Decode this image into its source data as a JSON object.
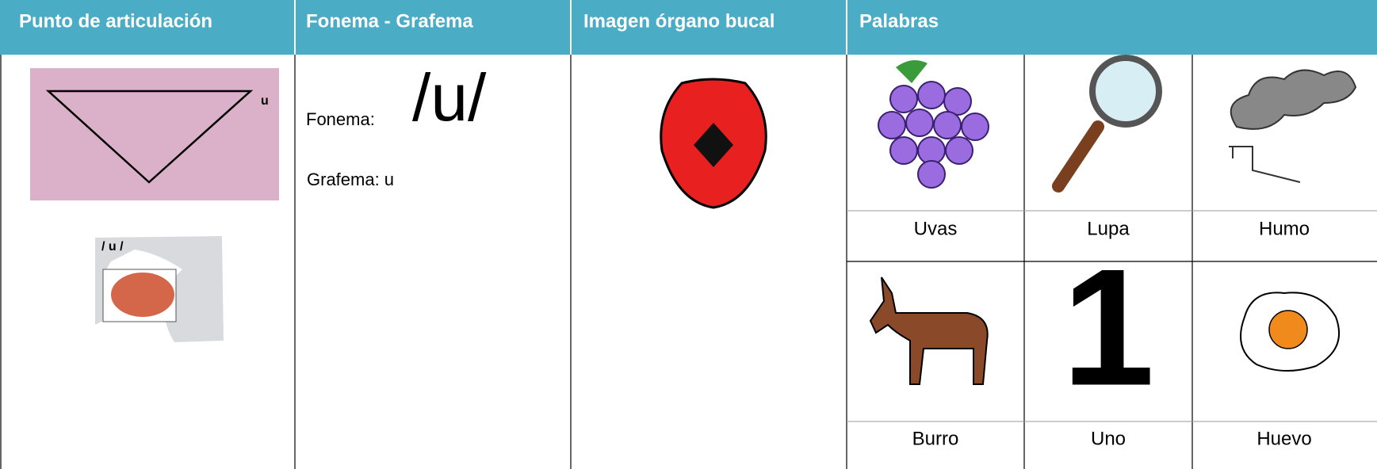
{
  "table": {
    "header": [
      "Punto de articulación",
      "Fonema - Grafema",
      "Imagen órgano bucal",
      "Palabras"
    ],
    "articulation": {
      "diagram_label": "u",
      "mouth_label": "/ u /"
    },
    "phoneme": {
      "fonema_label": "Fonema:",
      "fonema": "/u/",
      "grafema": "Grafema: u"
    },
    "number_picture": "1",
    "words": [
      [
        "Uvas",
        "Lupa",
        "Humo"
      ],
      [
        "Burro",
        "Uno",
        "Huevo"
      ]
    ]
  }
}
